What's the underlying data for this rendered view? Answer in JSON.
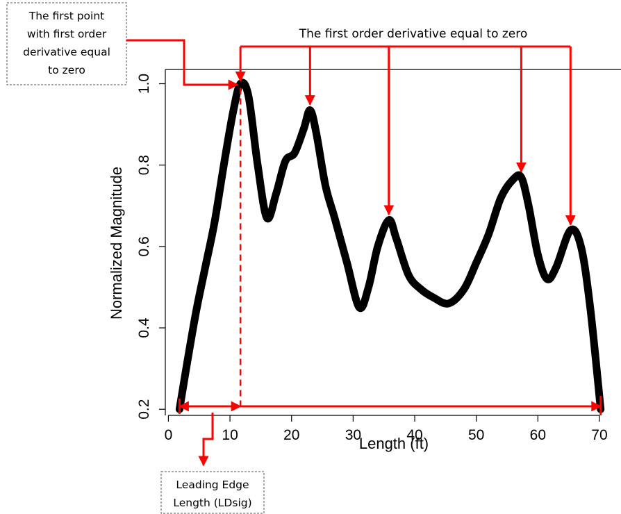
{
  "chart_data": {
    "type": "line",
    "title": "",
    "xlabel": "Length (ft)",
    "ylabel": "Normalized Magnitude",
    "xlim": [
      -0.5,
      73.5
    ],
    "ylim": [
      0.185,
      1.035
    ],
    "xticks": [
      0,
      10,
      20,
      30,
      40,
      50,
      60,
      70
    ],
    "yticks": [
      0.2,
      0.4,
      0.6,
      0.8,
      1.0
    ],
    "xtick_labels": [
      "0",
      "10",
      "20",
      "30",
      "40",
      "50",
      "60",
      "70"
    ],
    "ytick_labels": [
      "0.2",
      "0.4",
      "0.6",
      "0.8",
      "1.0"
    ],
    "grid": false,
    "series": [
      {
        "color": "#000000",
        "x": [
          1.8,
          3,
          4.5,
          6,
          7.5,
          9,
          10.5,
          11.7,
          13,
          14.5,
          16,
          17.5,
          19,
          20.5,
          22,
          23,
          24,
          25.5,
          27,
          29,
          31,
          32.5,
          34,
          35.8,
          37,
          39,
          41,
          43,
          45.5,
          48,
          50,
          52,
          54,
          56,
          57.3,
          58.5,
          60,
          61.5,
          63,
          65.3,
          67,
          68.5,
          70.2
        ],
        "y": [
          0.2,
          0.31,
          0.44,
          0.55,
          0.66,
          0.8,
          0.93,
          1.0,
          0.97,
          0.8,
          0.67,
          0.73,
          0.81,
          0.83,
          0.89,
          0.935,
          0.88,
          0.75,
          0.67,
          0.56,
          0.45,
          0.5,
          0.6,
          0.665,
          0.62,
          0.53,
          0.495,
          0.475,
          0.46,
          0.495,
          0.56,
          0.63,
          0.72,
          0.765,
          0.77,
          0.7,
          0.58,
          0.52,
          0.55,
          0.64,
          0.6,
          0.45,
          0.2
        ]
      }
    ],
    "annotations": {
      "first_point_box": [
        "The first point",
        "with first order",
        "derivative equal",
        "to zero"
      ],
      "top_label": "The first order derivative equal to zero",
      "bottom_box": [
        "Leading Edge",
        "Length (LDsig)"
      ],
      "first_point": {
        "x": 11.7,
        "y": 1.0
      },
      "zero_derivative_points": [
        {
          "x": 23,
          "y": 0.935
        },
        {
          "x": 35.8,
          "y": 0.665
        },
        {
          "x": 57.3,
          "y": 0.77
        },
        {
          "x": 65.3,
          "y": 0.64
        }
      ],
      "leading_edge_range": [
        1.8,
        11.7
      ],
      "signal_range": [
        1.8,
        70.2
      ],
      "annotation_color": "#ff0000"
    }
  }
}
